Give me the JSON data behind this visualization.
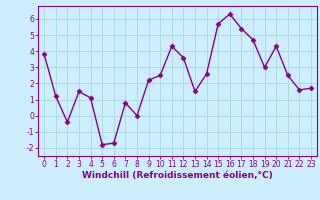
{
  "x": [
    0,
    1,
    2,
    3,
    4,
    5,
    6,
    7,
    8,
    9,
    10,
    11,
    12,
    13,
    14,
    15,
    16,
    17,
    18,
    19,
    20,
    21,
    22,
    23
  ],
  "y": [
    3.8,
    1.2,
    -0.4,
    1.5,
    1.1,
    -1.8,
    -1.7,
    0.8,
    0.0,
    2.2,
    2.5,
    4.3,
    3.6,
    1.5,
    2.6,
    5.7,
    6.3,
    5.4,
    4.7,
    3.0,
    4.3,
    2.5,
    1.6,
    1.7
  ],
  "line_color": "#880088",
  "marker": "D",
  "marker_size": 2.5,
  "bg_color": "#cceeff",
  "grid_color": "#aadddd",
  "xlabel": "Windchill (Refroidissement éolien,°C)",
  "ylim": [
    -2.5,
    6.8
  ],
  "yticks": [
    -2,
    -1,
    0,
    1,
    2,
    3,
    4,
    5,
    6
  ],
  "xticks": [
    0,
    1,
    2,
    3,
    4,
    5,
    6,
    7,
    8,
    9,
    10,
    11,
    12,
    13,
    14,
    15,
    16,
    17,
    18,
    19,
    20,
    21,
    22,
    23
  ],
  "xlabel_fontsize": 6.5,
  "tick_fontsize": 5.5,
  "spine_color": "#880088",
  "line_width": 1.0
}
